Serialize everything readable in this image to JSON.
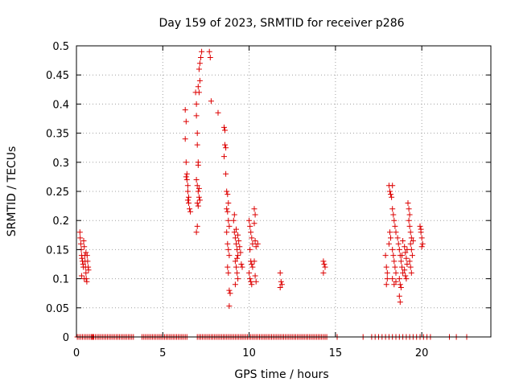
{
  "chart_data": {
    "type": "scatter",
    "title": "Day 159 of 2023, SRMTID for receiver p286",
    "xlabel": "GPS time / hours",
    "ylabel": "SRMTID / TECUs",
    "xlim": [
      0,
      24
    ],
    "ylim": [
      0,
      0.5
    ],
    "xticks": [
      0,
      5,
      10,
      15,
      20
    ],
    "xtick_labels": [
      "0",
      "5",
      "10",
      "15",
      "20"
    ],
    "yticks": [
      0,
      0.05,
      0.1,
      0.15,
      0.2,
      0.25,
      0.3,
      0.35,
      0.4,
      0.45,
      0.5
    ],
    "ytick_labels": [
      "0",
      "0.05",
      "0.1",
      "0.15",
      "0.2",
      "0.25",
      "0.3",
      "0.35",
      "0.4",
      "0.45",
      "0.5"
    ],
    "grid": true,
    "marker": "+",
    "color": "#dd0000",
    "series": [
      {
        "name": "SRMTID",
        "points": [
          [
            0.2,
            0.18
          ],
          [
            0.22,
            0.17
          ],
          [
            0.25,
            0.16
          ],
          [
            0.28,
            0.15
          ],
          [
            0.3,
            0.14
          ],
          [
            0.32,
            0.135
          ],
          [
            0.35,
            0.13
          ],
          [
            0.38,
            0.125
          ],
          [
            0.4,
            0.12
          ],
          [
            0.42,
            0.165
          ],
          [
            0.45,
            0.155
          ],
          [
            0.48,
            0.14
          ],
          [
            0.5,
            0.13
          ],
          [
            0.52,
            0.12
          ],
          [
            0.55,
            0.11
          ],
          [
            0.57,
            0.1
          ],
          [
            0.6,
            0.095
          ],
          [
            0.62,
            0.14
          ],
          [
            0.65,
            0.13
          ],
          [
            0.68,
            0.12
          ],
          [
            0.7,
            0.115
          ],
          [
            0.3,
            0.105
          ],
          [
            0.45,
            0.1
          ],
          [
            0.55,
            0.145
          ],
          [
            6.3,
            0.39
          ],
          [
            6.35,
            0.37
          ],
          [
            6.3,
            0.34
          ],
          [
            6.35,
            0.3
          ],
          [
            6.4,
            0.28
          ],
          [
            6.4,
            0.27
          ],
          [
            6.45,
            0.26
          ],
          [
            6.45,
            0.25
          ],
          [
            6.5,
            0.24
          ],
          [
            6.5,
            0.23
          ],
          [
            6.55,
            0.22
          ],
          [
            6.6,
            0.215
          ],
          [
            6.35,
            0.275
          ],
          [
            6.45,
            0.235
          ],
          [
            6.9,
            0.42
          ],
          [
            6.95,
            0.4
          ],
          [
            6.95,
            0.38
          ],
          [
            7.0,
            0.35
          ],
          [
            7.0,
            0.33
          ],
          [
            7.05,
            0.3
          ],
          [
            7.05,
            0.295
          ],
          [
            6.95,
            0.27
          ],
          [
            7.0,
            0.26
          ],
          [
            7.05,
            0.25
          ],
          [
            7.1,
            0.24
          ],
          [
            7.0,
            0.23
          ],
          [
            7.05,
            0.225
          ],
          [
            7.0,
            0.19
          ],
          [
            6.95,
            0.18
          ],
          [
            7.05,
            0.43
          ],
          [
            7.1,
            0.42
          ],
          [
            7.15,
            0.44
          ],
          [
            7.1,
            0.46
          ],
          [
            7.15,
            0.47
          ],
          [
            7.2,
            0.48
          ],
          [
            7.25,
            0.49
          ],
          [
            7.1,
            0.255
          ],
          [
            7.15,
            0.235
          ],
          [
            7.7,
            0.49
          ],
          [
            7.75,
            0.48
          ],
          [
            7.8,
            0.405
          ],
          [
            8.2,
            0.385
          ],
          [
            8.55,
            0.36
          ],
          [
            8.6,
            0.355
          ],
          [
            8.6,
            0.33
          ],
          [
            8.65,
            0.325
          ],
          [
            8.55,
            0.31
          ],
          [
            8.65,
            0.28
          ],
          [
            8.7,
            0.25
          ],
          [
            8.75,
            0.245
          ],
          [
            8.8,
            0.23
          ],
          [
            8.7,
            0.22
          ],
          [
            8.75,
            0.215
          ],
          [
            8.8,
            0.2
          ],
          [
            8.85,
            0.19
          ],
          [
            8.7,
            0.18
          ],
          [
            8.75,
            0.16
          ],
          [
            8.8,
            0.15
          ],
          [
            8.85,
            0.14
          ],
          [
            8.75,
            0.12
          ],
          [
            8.8,
            0.11
          ],
          [
            8.85,
            0.08
          ],
          [
            8.9,
            0.075
          ],
          [
            8.85,
            0.053
          ],
          [
            9.1,
            0.2
          ],
          [
            9.15,
            0.18
          ],
          [
            9.2,
            0.17
          ],
          [
            9.25,
            0.16
          ],
          [
            9.3,
            0.15
          ],
          [
            9.35,
            0.14
          ],
          [
            9.2,
            0.13
          ],
          [
            9.25,
            0.12
          ],
          [
            9.3,
            0.11
          ],
          [
            9.35,
            0.1
          ],
          [
            9.2,
            0.09
          ],
          [
            9.15,
            0.21
          ],
          [
            9.25,
            0.185
          ],
          [
            9.35,
            0.175
          ],
          [
            9.45,
            0.155
          ],
          [
            9.5,
            0.145
          ],
          [
            9.55,
            0.125
          ],
          [
            9.6,
            0.12
          ],
          [
            9.3,
            0.135
          ],
          [
            9.4,
            0.165
          ],
          [
            10.0,
            0.2
          ],
          [
            10.05,
            0.19
          ],
          [
            10.1,
            0.18
          ],
          [
            10.15,
            0.17
          ],
          [
            10.2,
            0.16
          ],
          [
            10.05,
            0.15
          ],
          [
            10.1,
            0.13
          ],
          [
            10.15,
            0.125
          ],
          [
            10.2,
            0.12
          ],
          [
            10.0,
            0.11
          ],
          [
            10.05,
            0.1
          ],
          [
            10.1,
            0.095
          ],
          [
            10.15,
            0.09
          ],
          [
            10.3,
            0.22
          ],
          [
            10.35,
            0.21
          ],
          [
            10.3,
            0.195
          ],
          [
            10.35,
            0.165
          ],
          [
            10.4,
            0.155
          ],
          [
            10.3,
            0.13
          ],
          [
            10.35,
            0.105
          ],
          [
            10.4,
            0.095
          ],
          [
            10.5,
            0.16
          ],
          [
            11.8,
            0.11
          ],
          [
            11.85,
            0.095
          ],
          [
            11.9,
            0.09
          ],
          [
            11.8,
            0.085
          ],
          [
            14.3,
            0.13
          ],
          [
            14.35,
            0.125
          ],
          [
            14.4,
            0.12
          ],
          [
            14.3,
            0.11
          ],
          [
            17.9,
            0.14
          ],
          [
            17.95,
            0.12
          ],
          [
            18.0,
            0.1
          ],
          [
            17.95,
            0.09
          ],
          [
            18.0,
            0.11
          ],
          [
            18.1,
            0.16
          ],
          [
            18.15,
            0.18
          ],
          [
            18.2,
            0.17
          ],
          [
            18.1,
            0.26
          ],
          [
            18.15,
            0.25
          ],
          [
            18.2,
            0.245
          ],
          [
            18.3,
            0.26
          ],
          [
            18.25,
            0.24
          ],
          [
            18.3,
            0.22
          ],
          [
            18.35,
            0.21
          ],
          [
            18.4,
            0.2
          ],
          [
            18.45,
            0.19
          ],
          [
            18.5,
            0.18
          ],
          [
            18.3,
            0.15
          ],
          [
            18.35,
            0.14
          ],
          [
            18.4,
            0.13
          ],
          [
            18.45,
            0.12
          ],
          [
            18.5,
            0.11
          ],
          [
            18.3,
            0.1
          ],
          [
            18.4,
            0.09
          ],
          [
            18.5,
            0.095
          ],
          [
            18.6,
            0.17
          ],
          [
            18.65,
            0.16
          ],
          [
            18.7,
            0.15
          ],
          [
            18.75,
            0.14
          ],
          [
            18.8,
            0.13
          ],
          [
            18.85,
            0.12
          ],
          [
            18.9,
            0.11
          ],
          [
            18.7,
            0.1
          ],
          [
            18.75,
            0.09
          ],
          [
            18.8,
            0.085
          ],
          [
            18.7,
            0.07
          ],
          [
            18.75,
            0.06
          ],
          [
            18.85,
            0.14
          ],
          [
            18.9,
            0.165
          ],
          [
            19.0,
            0.155
          ],
          [
            19.05,
            0.145
          ],
          [
            19.1,
            0.135
          ],
          [
            19.15,
            0.125
          ],
          [
            19.0,
            0.115
          ],
          [
            19.05,
            0.105
          ],
          [
            19.1,
            0.1
          ],
          [
            19.15,
            0.15
          ],
          [
            19.2,
            0.23
          ],
          [
            19.25,
            0.22
          ],
          [
            19.3,
            0.21
          ],
          [
            19.25,
            0.2
          ],
          [
            19.3,
            0.19
          ],
          [
            19.35,
            0.18
          ],
          [
            19.4,
            0.17
          ],
          [
            19.35,
            0.16
          ],
          [
            19.4,
            0.15
          ],
          [
            19.45,
            0.14
          ],
          [
            19.3,
            0.13
          ],
          [
            19.35,
            0.12
          ],
          [
            19.4,
            0.11
          ],
          [
            19.5,
            0.165
          ],
          [
            19.9,
            0.19
          ],
          [
            19.95,
            0.18
          ],
          [
            20.0,
            0.17
          ],
          [
            20.05,
            0.16
          ],
          [
            19.95,
            0.185
          ],
          [
            20.0,
            0.155
          ]
        ]
      }
    ],
    "zero_points_x": [
      0.05,
      0.15,
      0.25,
      0.35,
      0.45,
      0.55,
      0.65,
      0.75,
      0.85,
      0.95,
      0.9,
      1.0,
      1.1,
      1.2,
      1.3,
      1.4,
      1.5,
      1.6,
      1.7,
      1.8,
      1.9,
      2.0,
      2.1,
      2.2,
      2.3,
      2.4,
      2.5,
      2.6,
      2.7,
      2.8,
      2.9,
      3.0,
      3.1,
      3.2,
      3.3,
      3.8,
      3.9,
      4.0,
      4.1,
      4.2,
      4.3,
      4.4,
      4.5,
      4.6,
      4.7,
      4.8,
      4.9,
      5.0,
      5.1,
      5.2,
      5.3,
      5.4,
      5.5,
      5.6,
      5.7,
      5.8,
      5.9,
      6.0,
      6.1,
      6.2,
      6.3,
      6.4,
      7.0,
      7.1,
      7.2,
      7.3,
      7.4,
      7.5,
      7.6,
      7.7,
      7.8,
      7.9,
      8.0,
      8.1,
      8.2,
      8.3,
      8.4,
      8.5,
      8.6,
      8.7,
      8.8,
      8.9,
      9.0,
      9.1,
      9.2,
      9.3,
      9.4,
      9.5,
      9.6,
      9.7,
      9.8,
      9.9,
      10.0,
      10.1,
      10.2,
      10.3,
      10.4,
      10.5,
      10.6,
      10.7,
      10.8,
      10.9,
      11.0,
      11.1,
      11.2,
      11.3,
      11.4,
      11.5,
      11.6,
      11.7,
      11.8,
      11.9,
      12.0,
      12.1,
      12.2,
      12.3,
      12.4,
      12.5,
      12.6,
      12.7,
      12.8,
      12.9,
      13.0,
      13.1,
      13.2,
      13.3,
      13.4,
      13.5,
      13.6,
      13.7,
      13.8,
      13.9,
      14.0,
      14.1,
      14.2,
      14.3,
      14.4,
      14.5,
      15.1,
      16.6,
      17.1,
      17.3,
      17.5,
      17.7,
      17.9,
      18.1,
      18.3,
      18.5,
      18.7,
      18.9,
      19.1,
      19.3,
      19.5,
      19.7,
      19.9,
      20.1,
      20.3,
      20.5,
      21.6,
      22.0,
      22.6
    ]
  }
}
